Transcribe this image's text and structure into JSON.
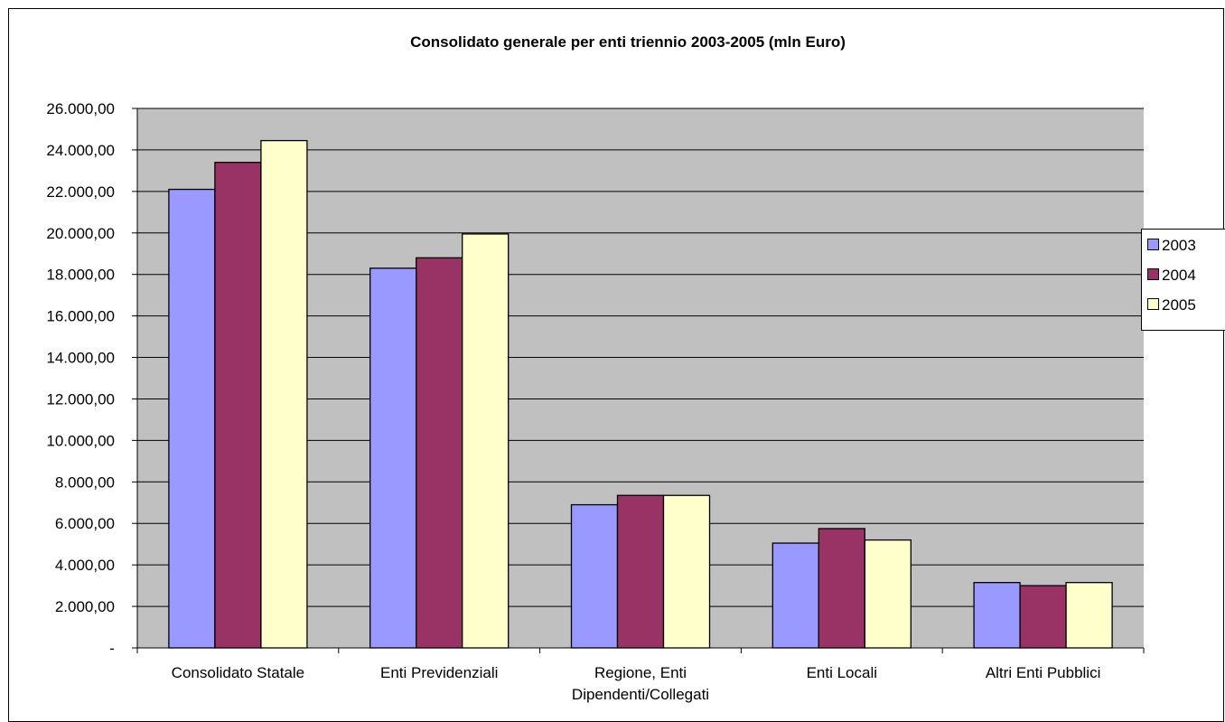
{
  "chart_data": {
    "type": "bar",
    "title": "Consolidato generale per enti triennio 2003-2005 (mln Euro)",
    "xlabel": "",
    "ylabel": "",
    "categories": [
      [
        "Consolidato Statale"
      ],
      [
        "Enti Previdenziali"
      ],
      [
        "Regione, Enti",
        "Dipendenti/Collegati"
      ],
      [
        "Enti Locali"
      ],
      [
        "Altri Enti Pubblici"
      ]
    ],
    "series": [
      {
        "name": "2003",
        "color": "#9999ff",
        "values": [
          22100,
          18300,
          6900,
          5050,
          3150
        ]
      },
      {
        "name": "2004",
        "color": "#993366",
        "values": [
          23400,
          18800,
          7350,
          5750,
          3000
        ]
      },
      {
        "name": "2005",
        "color": "#ffffcc",
        "values": [
          24450,
          19950,
          7350,
          5200,
          3150
        ]
      }
    ],
    "ylim": [
      0,
      26000
    ],
    "yticks": [
      0,
      2000,
      4000,
      6000,
      8000,
      10000,
      12000,
      14000,
      16000,
      18000,
      20000,
      22000,
      24000,
      26000
    ],
    "ytick_labels": [
      "-",
      "2.000,00",
      "4.000,00",
      "6.000,00",
      "8.000,00",
      "10.000,00",
      "12.000,00",
      "14.000,00",
      "16.000,00",
      "18.000,00",
      "20.000,00",
      "22.000,00",
      "24.000,00",
      "26.000,00"
    ],
    "plot_background": "#c0c0c0",
    "grid": true,
    "legend_position": "right"
  }
}
